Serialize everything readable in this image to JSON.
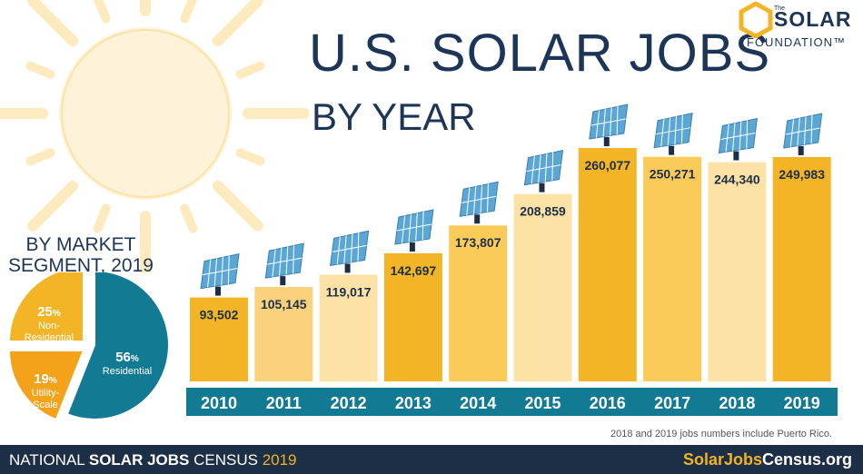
{
  "title": "U.S. SOLAR JOBS",
  "subtitle": "BY YEAR",
  "logo": {
    "the": "The",
    "solar": "SOLAR",
    "foundation": "FOUNDATION™"
  },
  "segment_title_line1": "BY MARKET",
  "segment_title_line2": "SEGMENT, 2019",
  "note": "2018 and 2019 jobs numbers include Puerto Rico.",
  "footer": {
    "prefix": "NATIONAL ",
    "bold": "SOLAR JOBS",
    "census": " CENSUS ",
    "year": "2019",
    "site_brand": "SolarJobs",
    "site_rest": "Census.org"
  },
  "colors": {
    "navy": "#1d3557",
    "teal": "#137a93",
    "gold": "#f3b526",
    "light_gold": "#fbd27c",
    "orange": "#f5a623"
  },
  "chart_data": [
    {
      "type": "bar",
      "title": "U.S. SOLAR JOBS BY YEAR",
      "categories": [
        "2010",
        "2011",
        "2012",
        "2013",
        "2014",
        "2015",
        "2016",
        "2017",
        "2018",
        "2019"
      ],
      "values": [
        93502,
        105145,
        119017,
        142697,
        173807,
        208859,
        260077,
        250271,
        244340,
        249983
      ],
      "value_labels": [
        "93,502",
        "105,145",
        "119,017",
        "142,697",
        "173,807",
        "208,859",
        "260,077",
        "250,271",
        "244,340",
        "249,983"
      ],
      "bar_colors": [
        "#f3b526",
        "#fbd27c",
        "#fde2a6",
        "#f3b526",
        "#fbcb5a",
        "#fde2a6",
        "#f3b526",
        "#fbcb5a",
        "#fde2a6",
        "#f3b526"
      ],
      "ylim": [
        0,
        260077
      ],
      "grid": false,
      "legend": "none"
    },
    {
      "type": "pie",
      "title": "BY MARKET SEGMENT, 2019",
      "slices": [
        {
          "label_line1": "Residential",
          "label_line2": "",
          "value": 56,
          "pct": "56",
          "color": "#137a93"
        },
        {
          "label_line1": "Utility-",
          "label_line2": "Scale",
          "value": 19,
          "pct": "19",
          "color": "#f5a21b"
        },
        {
          "label_line1": "Non-",
          "label_line2": "Residential",
          "value": 25,
          "pct": "25",
          "color": "#f3b526"
        }
      ],
      "percent_sign": "%"
    }
  ]
}
